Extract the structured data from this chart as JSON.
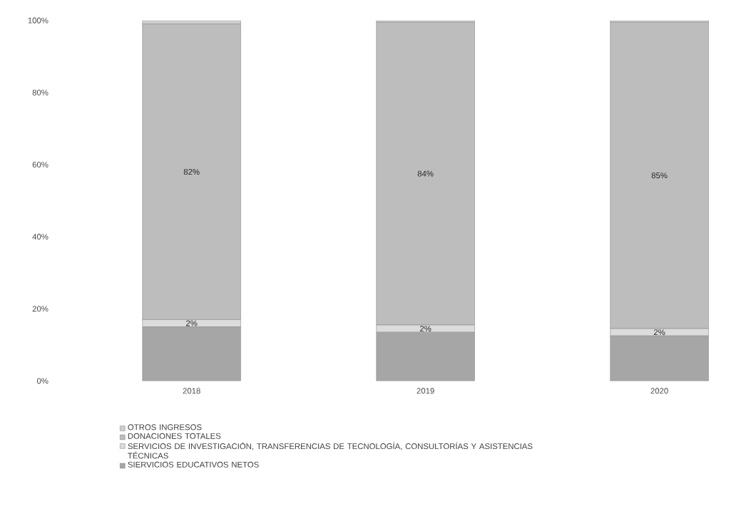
{
  "chart_data": {
    "type": "bar",
    "stacked": true,
    "categories": [
      "2018",
      "2019",
      "2020"
    ],
    "ylim": [
      0,
      100
    ],
    "yticks": [
      {
        "value": 0,
        "label": "0%"
      },
      {
        "value": 20,
        "label": "20%"
      },
      {
        "value": 40,
        "label": "40%"
      },
      {
        "value": 60,
        "label": "60%"
      },
      {
        "value": 80,
        "label": "80%"
      },
      {
        "value": 100,
        "label": "100%"
      }
    ],
    "legend": "bottom",
    "series": [
      {
        "name": "SIERVICIOS EDUCATIVOS NETOS",
        "color": "#a6a6a6",
        "values": [
          15,
          13.5,
          12.5
        ]
      },
      {
        "name": "SERVICIOS DE INVESTIGACIÓN, TRANSFERENCIAS DE TECNOLOGÍA, CONSULTORÍAS Y ASISTENCIAS TÉCNICAS",
        "color": "#dcdcdc",
        "values": [
          2,
          2,
          2
        ],
        "value_labels": [
          "2%",
          "2%",
          "2%"
        ]
      },
      {
        "name": "DONACIONES TOTALES",
        "color": "#bdbdbd",
        "values": [
          82,
          84,
          85
        ],
        "value_labels": [
          "82%",
          "84%",
          "85%"
        ]
      },
      {
        "name": "OTROS INGRESOS",
        "color": "#cfcfcf",
        "values": [
          1,
          0.5,
          0.5
        ]
      }
    ]
  }
}
